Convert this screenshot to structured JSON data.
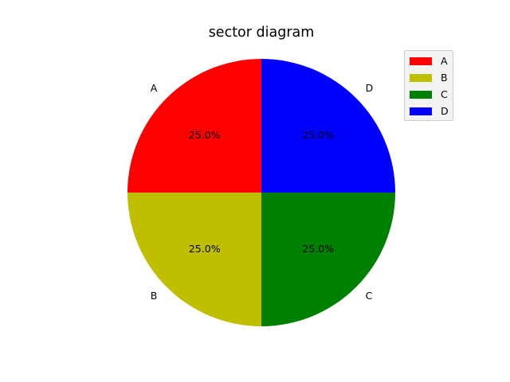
{
  "chart_data": {
    "type": "pie",
    "title": "sector diagram",
    "labels": [
      "A",
      "B",
      "C",
      "D"
    ],
    "values": [
      25,
      25,
      25,
      25
    ],
    "percent_labels": [
      "25.0%",
      "25.0%",
      "25.0%",
      "25.0%"
    ],
    "colors": [
      "#ff0000",
      "#bfbf00",
      "#008000",
      "#0000ff"
    ],
    "start_angle_deg": 90,
    "direction": "counterclockwise",
    "legend": {
      "placement": "top-right",
      "entries": [
        "A",
        "B",
        "C",
        "D"
      ]
    }
  }
}
